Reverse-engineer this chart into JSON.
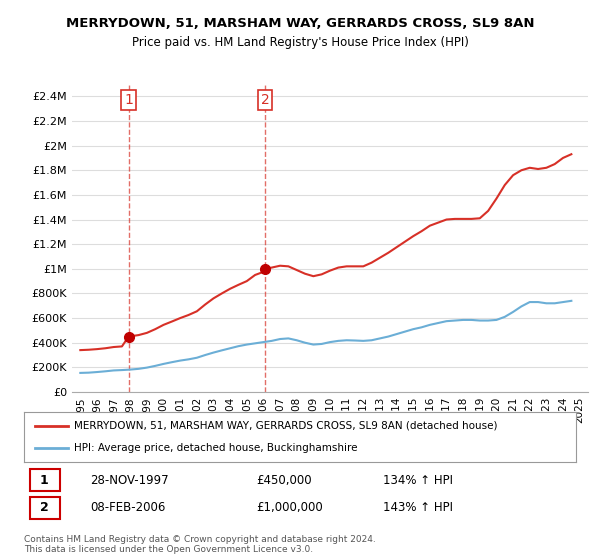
{
  "title": "MERRYDOWN, 51, MARSHAM WAY, GERRARDS CROSS, SL9 8AN",
  "subtitle": "Price paid vs. HM Land Registry's House Price Index (HPI)",
  "ylabel": "",
  "ylim": [
    0,
    2500000
  ],
  "yticks": [
    0,
    200000,
    400000,
    600000,
    800000,
    1000000,
    1200000,
    1400000,
    1600000,
    1800000,
    2000000,
    2200000,
    2400000
  ],
  "ytick_labels": [
    "£0",
    "£200K",
    "£400K",
    "£600K",
    "£800K",
    "£1M",
    "£1.2M",
    "£1.4M",
    "£1.6M",
    "£1.8M",
    "£2M",
    "£2.2M",
    "£2.4M"
  ],
  "hpi_color": "#6baed6",
  "price_color": "#d73027",
  "marker_color": "#c00000",
  "background_color": "#ffffff",
  "grid_color": "#dddddd",
  "legend_label_red": "MERRYDOWN, 51, MARSHAM WAY, GERRARDS CROSS, SL9 8AN (detached house)",
  "legend_label_blue": "HPI: Average price, detached house, Buckinghamshire",
  "transaction1_date": "28-NOV-1997",
  "transaction1_price": "£450,000",
  "transaction1_hpi": "134% ↑ HPI",
  "transaction1_year": 1997.9,
  "transaction1_value": 450000,
  "transaction2_date": "08-FEB-2006",
  "transaction2_price": "£1,000,000",
  "transaction2_hpi": "143% ↑ HPI",
  "transaction2_year": 2006.1,
  "transaction2_value": 1000000,
  "footer": "Contains HM Land Registry data © Crown copyright and database right 2024.\nThis data is licensed under the Open Government Licence v3.0.",
  "hpi_years": [
    1995,
    1995.5,
    1996,
    1996.5,
    1997,
    1997.5,
    1998,
    1998.5,
    1999,
    1999.5,
    2000,
    2000.5,
    2001,
    2001.5,
    2002,
    2002.5,
    2003,
    2003.5,
    2004,
    2004.5,
    2005,
    2005.5,
    2006,
    2006.5,
    2007,
    2007.5,
    2008,
    2008.5,
    2009,
    2009.5,
    2010,
    2010.5,
    2011,
    2011.5,
    2012,
    2012.5,
    2013,
    2013.5,
    2014,
    2014.5,
    2015,
    2015.5,
    2016,
    2016.5,
    2017,
    2017.5,
    2018,
    2018.5,
    2019,
    2019.5,
    2020,
    2020.5,
    2021,
    2021.5,
    2022,
    2022.5,
    2023,
    2023.5,
    2024,
    2024.5
  ],
  "hpi_values": [
    155000,
    157000,
    162000,
    168000,
    175000,
    178000,
    182000,
    188000,
    198000,
    212000,
    228000,
    242000,
    255000,
    265000,
    278000,
    300000,
    320000,
    338000,
    355000,
    372000,
    385000,
    395000,
    405000,
    415000,
    430000,
    435000,
    420000,
    400000,
    385000,
    390000,
    405000,
    415000,
    420000,
    418000,
    415000,
    420000,
    435000,
    450000,
    470000,
    490000,
    510000,
    525000,
    545000,
    560000,
    575000,
    580000,
    585000,
    585000,
    580000,
    580000,
    585000,
    610000,
    650000,
    695000,
    730000,
    730000,
    720000,
    720000,
    730000,
    740000
  ],
  "price_years": [
    1995,
    1995.5,
    1996,
    1996.5,
    1997,
    1997.5,
    1997.9,
    1998,
    1998.5,
    1999,
    1999.5,
    2000,
    2000.5,
    2001,
    2001.5,
    2002,
    2002.5,
    2003,
    2003.5,
    2004,
    2004.5,
    2005,
    2005.5,
    2006,
    2006.1,
    2006.5,
    2007,
    2007.5,
    2008,
    2008.5,
    2009,
    2009.5,
    2010,
    2010.5,
    2011,
    2011.5,
    2012,
    2012.5,
    2013,
    2013.5,
    2014,
    2014.5,
    2015,
    2015.5,
    2016,
    2016.5,
    2017,
    2017.5,
    2018,
    2018.5,
    2019,
    2019.5,
    2020,
    2020.5,
    2021,
    2021.5,
    2022,
    2022.5,
    2023,
    2023.5,
    2024,
    2024.5
  ],
  "price_values": [
    340000,
    343000,
    348000,
    355000,
    365000,
    370000,
    450000,
    452000,
    462000,
    480000,
    510000,
    545000,
    572000,
    600000,
    625000,
    655000,
    710000,
    760000,
    800000,
    838000,
    870000,
    900000,
    950000,
    975000,
    1000000,
    1010000,
    1025000,
    1020000,
    990000,
    960000,
    940000,
    955000,
    985000,
    1010000,
    1020000,
    1020000,
    1020000,
    1050000,
    1090000,
    1130000,
    1175000,
    1220000,
    1265000,
    1305000,
    1350000,
    1375000,
    1400000,
    1405000,
    1405000,
    1405000,
    1410000,
    1470000,
    1570000,
    1680000,
    1760000,
    1800000,
    1820000,
    1810000,
    1820000,
    1850000,
    1900000,
    1930000
  ],
  "xlim": [
    1994.5,
    2025.5
  ],
  "xtick_years": [
    1995,
    1996,
    1997,
    1998,
    1999,
    2000,
    2001,
    2002,
    2003,
    2004,
    2005,
    2006,
    2007,
    2008,
    2009,
    2010,
    2011,
    2012,
    2013,
    2014,
    2015,
    2016,
    2017,
    2018,
    2019,
    2020,
    2021,
    2022,
    2023,
    2024,
    2025
  ]
}
